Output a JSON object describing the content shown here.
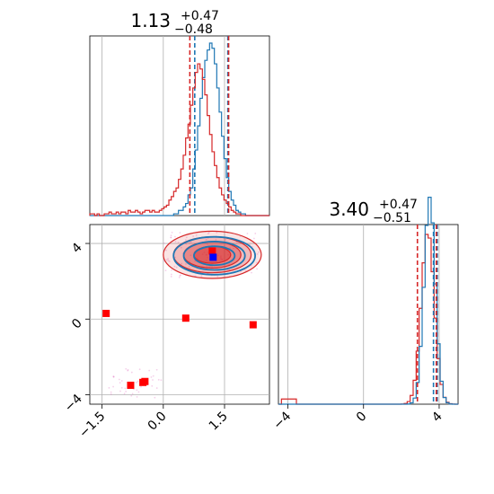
{
  "chart_data": [
    {
      "type": "histogram",
      "panel": "top-left",
      "title": "1.13",
      "title_sup": "+0.47",
      "title_sub": "−0.48",
      "xlim": [
        -1.8,
        2.6
      ],
      "grid": true,
      "bins_edges": [
        -1.8,
        2.6
      ],
      "series": [
        {
          "color": "#1f77b4",
          "counts": [
            0,
            0,
            0,
            0,
            0,
            0,
            0,
            0,
            0,
            0,
            0,
            0,
            0,
            0,
            0,
            0,
            0,
            0,
            0,
            0,
            0,
            0,
            0,
            0,
            0,
            0,
            0,
            0,
            0,
            0,
            0,
            0,
            0,
            0,
            0,
            1,
            1,
            3,
            3,
            5,
            7,
            12,
            16,
            27,
            38,
            52,
            68,
            80,
            90,
            96,
            100,
            97,
            88,
            74,
            60,
            46,
            33,
            22,
            14,
            9,
            6,
            3,
            2,
            1,
            1,
            0,
            0,
            0,
            0,
            0,
            0,
            0,
            0,
            0,
            0
          ],
          "quantiles": [
            0.77,
            1.58
          ]
        },
        {
          "color": "#d62728",
          "counts": [
            1,
            1,
            0,
            1,
            0,
            0,
            1,
            1,
            2,
            1,
            1,
            2,
            1,
            2,
            2,
            1,
            3,
            2,
            2,
            3,
            2,
            1,
            2,
            3,
            3,
            2,
            3,
            2,
            2,
            3,
            4,
            5,
            6,
            9,
            11,
            14,
            16,
            21,
            27,
            35,
            45,
            53,
            64,
            74,
            83,
            88,
            85,
            79,
            70,
            58,
            47,
            37,
            29,
            22,
            16,
            12,
            9,
            7,
            5,
            3,
            2,
            1,
            1,
            0,
            0,
            0,
            0,
            0,
            0,
            0,
            0,
            0,
            0,
            0,
            0
          ],
          "quantiles": [
            0.65,
            1.6
          ]
        }
      ]
    },
    {
      "type": "scatter",
      "panel": "bottom-left",
      "xlim": [
        -1.8,
        2.6
      ],
      "ylim": [
        -4.5,
        5.0
      ],
      "xticks": [
        "−1.5",
        "0.0",
        "1.5"
      ],
      "yticks": [
        "−4",
        "0",
        "4"
      ],
      "grid": true,
      "contour_centers": [
        {
          "color": "#1f77b4",
          "x": 1.25,
          "y": 3.35
        },
        {
          "color": "#d62728",
          "x": 1.2,
          "y": 3.4
        }
      ],
      "red_markers": [
        {
          "x": -1.4,
          "y": 0.3
        },
        {
          "x": -0.8,
          "y": -3.5
        },
        {
          "x": -0.5,
          "y": -3.35
        },
        {
          "x": -0.45,
          "y": -3.3
        },
        {
          "x": 0.55,
          "y": 0.05
        },
        {
          "x": 2.2,
          "y": -0.3
        },
        {
          "x": 1.2,
          "y": 3.6
        }
      ],
      "blue_marker": {
        "x": 1.22,
        "y": 3.27
      }
    },
    {
      "type": "histogram",
      "panel": "bottom-right",
      "title": "3.40",
      "title_sup": "+0.47",
      "title_sub": "−0.51",
      "xlim": [
        -4.5,
        5.0
      ],
      "xticks": [
        "−4",
        "0",
        "4"
      ],
      "grid": true,
      "series": [
        {
          "color": "#1f77b4",
          "quantiles": [
            3.7,
            3.9
          ]
        },
        {
          "color": "#d62728",
          "quantiles": [
            2.85,
            3.85
          ]
        }
      ]
    }
  ]
}
